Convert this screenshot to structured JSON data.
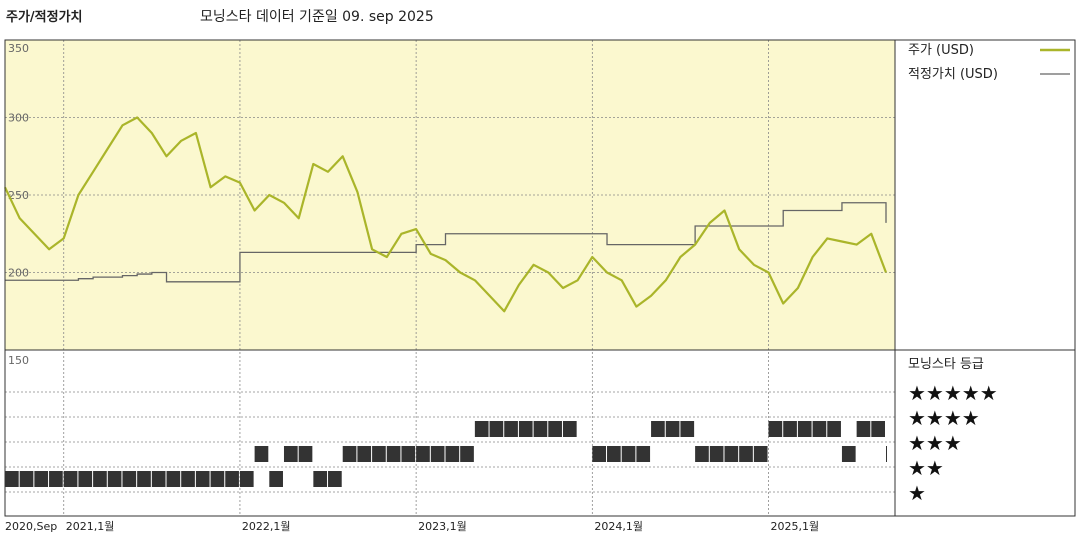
{
  "header": {
    "title": "주가/적정가치",
    "subtitle": "모닝스타 데이터 기준일 09. sep 2025"
  },
  "colors": {
    "price": "#aab52a",
    "fair_value": "#666666",
    "upper_panel_bg": "#fbf8cf",
    "rating_bar": "#333333"
  },
  "chart_data": {
    "type": "line",
    "x": [
      "2020-09",
      "2020-10",
      "2020-11",
      "2020-12",
      "2021-01",
      "2021-02",
      "2021-03",
      "2021-04",
      "2021-05",
      "2021-06",
      "2021-07",
      "2021-08",
      "2021-09",
      "2021-10",
      "2021-11",
      "2021-12",
      "2022-01",
      "2022-02",
      "2022-03",
      "2022-04",
      "2022-05",
      "2022-06",
      "2022-07",
      "2022-08",
      "2022-09",
      "2022-10",
      "2022-11",
      "2022-12",
      "2023-01",
      "2023-02",
      "2023-03",
      "2023-04",
      "2023-05",
      "2023-06",
      "2023-07",
      "2023-08",
      "2023-09",
      "2023-10",
      "2023-11",
      "2023-12",
      "2024-01",
      "2024-02",
      "2024-03",
      "2024-04",
      "2024-05",
      "2024-06",
      "2024-07",
      "2024-08",
      "2024-09",
      "2024-10",
      "2024-11",
      "2024-12",
      "2025-01",
      "2025-02",
      "2025-03",
      "2025-04",
      "2025-05",
      "2025-06",
      "2025-07",
      "2025-08",
      "2025-09"
    ],
    "x_ticks": [
      "2020,Sep",
      "2021,1월",
      "2022,1월",
      "2023,1월",
      "2024,1월",
      "2025,1월"
    ],
    "y_ticks": [
      350,
      300,
      250,
      200,
      150
    ],
    "ylim": [
      150,
      350
    ],
    "series": [
      {
        "name": "주가 (USD)",
        "values": [
          255,
          235,
          225,
          215,
          222,
          250,
          265,
          280,
          295,
          300,
          290,
          275,
          285,
          290,
          255,
          262,
          258,
          240,
          250,
          245,
          235,
          270,
          265,
          275,
          252,
          215,
          210,
          225,
          228,
          212,
          208,
          200,
          195,
          185,
          175,
          192,
          205,
          200,
          190,
          195,
          210,
          200,
          195,
          178,
          185,
          195,
          210,
          218,
          232,
          240,
          215,
          205,
          200,
          180,
          190,
          210,
          222,
          220,
          218,
          225,
          200
        ]
      },
      {
        "name": "적정가치 (USD)",
        "values": [
          195,
          195,
          195,
          195,
          195,
          196,
          197,
          197,
          198,
          199,
          200,
          194,
          194,
          194,
          194,
          194,
          213,
          213,
          213,
          213,
          213,
          213,
          213,
          213,
          213,
          213,
          213,
          213,
          218,
          218,
          225,
          225,
          225,
          225,
          225,
          225,
          225,
          225,
          225,
          225,
          225,
          218,
          218,
          218,
          218,
          218,
          218,
          230,
          230,
          230,
          230,
          230,
          230,
          240,
          240,
          240,
          240,
          245,
          245,
          245,
          232
        ]
      }
    ],
    "legend": {
      "position": "top-right"
    },
    "grid": true,
    "rating": {
      "label": "모닝스타 등급",
      "levels": [
        "★★★★★",
        "★★★★",
        "★★★",
        "★★",
        "★"
      ],
      "stars": [
        2,
        2,
        2,
        2,
        2,
        2,
        2,
        2,
        2,
        2,
        2,
        2,
        2,
        2,
        2,
        2,
        2,
        3,
        2,
        3,
        3,
        2,
        2,
        3,
        3,
        3,
        3,
        3,
        3,
        3,
        3,
        3,
        4,
        4,
        4,
        4,
        4,
        4,
        4,
        0,
        3,
        3,
        3,
        3,
        4,
        4,
        4,
        3,
        3,
        3,
        3,
        3,
        4,
        4,
        4,
        4,
        4,
        3,
        4,
        4,
        3
      ]
    }
  }
}
